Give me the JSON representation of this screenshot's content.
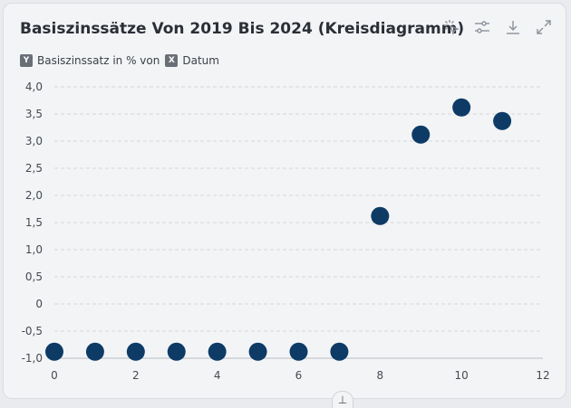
{
  "header": {
    "title": "Basiszinssätze Von 2019 Bis 2024 (Kreisdiagramm)"
  },
  "toolbar": {
    "icons": [
      "lasso-select-icon",
      "filter-sliders-icon",
      "download-icon",
      "expand-icon"
    ]
  },
  "legend": {
    "y_badge": "Y",
    "y_label": "Basiszinssatz in % von",
    "x_badge": "X",
    "x_label": "Datum"
  },
  "chart_data": {
    "type": "scatter",
    "title": "Basiszinssätze Von 2019 Bis 2024 (Kreisdiagramm)",
    "xlabel": "Datum",
    "ylabel": "Basiszinssatz in %",
    "xlim": [
      0,
      12
    ],
    "ylim": [
      -1.0,
      4.0
    ],
    "x_ticks": [
      "0",
      "2",
      "4",
      "6",
      "8",
      "10",
      "12"
    ],
    "y_ticks": [
      "-1,0",
      "-0,5",
      "0",
      "0,5",
      "1,0",
      "1,5",
      "2,0",
      "2,5",
      "3,0",
      "3,5",
      "4,0"
    ],
    "grid": true,
    "series": [
      {
        "x": [
          0,
          1,
          2,
          3,
          4,
          5,
          6,
          7,
          8,
          9,
          10,
          11
        ],
        "y": [
          -0.88,
          -0.88,
          -0.88,
          -0.88,
          -0.88,
          -0.88,
          -0.88,
          -0.88,
          1.62,
          3.12,
          3.62,
          3.37
        ],
        "color": "#0d3b66"
      }
    ]
  }
}
